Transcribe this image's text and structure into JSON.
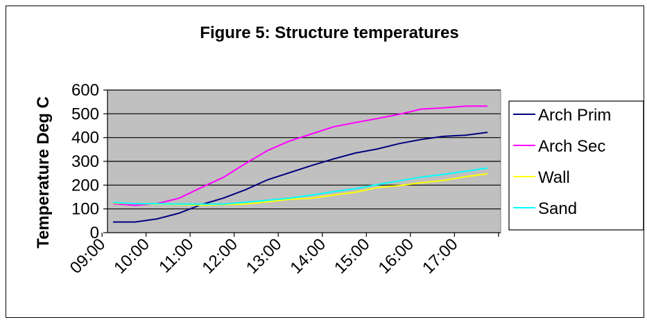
{
  "chart_data": {
    "type": "line",
    "title": "Figure 5: Structure temperatures",
    "xlabel": "",
    "ylabel": "Temperature Deg C",
    "ylim": [
      0,
      600
    ],
    "yticks": [
      0,
      100,
      200,
      300,
      400,
      500,
      600
    ],
    "grid": true,
    "legend_position": "right",
    "x": [
      "09:15",
      "09:45",
      "10:15",
      "10:45",
      "11:15",
      "11:45",
      "12:15",
      "12:45",
      "13:15",
      "13:45",
      "14:15",
      "14:45",
      "15:15",
      "15:45",
      "16:15",
      "16:45",
      "17:15",
      "17:45"
    ],
    "xtick_labels": [
      "09:00",
      "10:00",
      "11:00",
      "12:00",
      "13:00",
      "14:00",
      "15:00",
      "16:00",
      "17:00"
    ],
    "series": [
      {
        "name": "Arch Prim",
        "color": "#000080",
        "values": [
          45,
          45,
          58,
          82,
          118,
          145,
          180,
          222,
          252,
          282,
          310,
          335,
          352,
          375,
          392,
          405,
          410,
          422
        ]
      },
      {
        "name": "Arch Sec",
        "color": "#ff00ff",
        "values": [
          122,
          115,
          122,
          145,
          190,
          232,
          290,
          345,
          385,
          415,
          445,
          463,
          480,
          498,
          520,
          525,
          532,
          532
        ]
      },
      {
        "name": "Wall",
        "color": "#ffff00",
        "values": [
          125,
          122,
          120,
          118,
          116,
          118,
          120,
          130,
          140,
          145,
          158,
          170,
          190,
          198,
          210,
          220,
          235,
          248
        ]
      },
      {
        "name": "Sand",
        "color": "#00ffff",
        "values": [
          128,
          122,
          122,
          120,
          120,
          120,
          128,
          136,
          145,
          158,
          172,
          185,
          202,
          218,
          234,
          245,
          258,
          272
        ]
      }
    ],
    "plot_background": "#c0c0c0",
    "gridline_color": "#000000"
  }
}
